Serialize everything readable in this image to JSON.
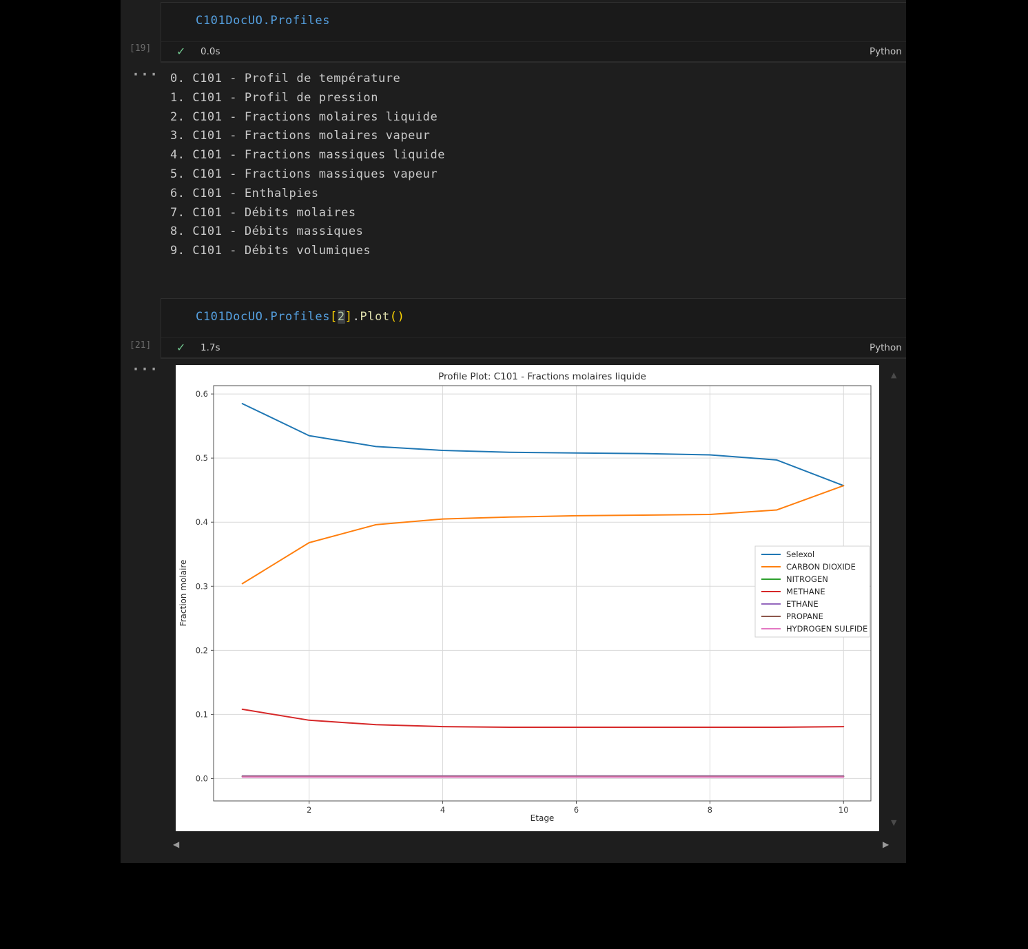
{
  "glyphs": {
    "check": "✓",
    "scroll_up": "▲",
    "scroll_down": "▼",
    "scroll_left": "◀",
    "scroll_right": "▶"
  },
  "cells": [
    {
      "execution_count": "[19]",
      "tokens": [
        {
          "text": "C101DocUO.Profiles",
          "style": "ident"
        }
      ],
      "duration": "0.0s",
      "kernel": "Python",
      "output": {
        "ellipsis": "···",
        "lines": [
          "0. C101 - Profil de température",
          "1. C101 - Profil de pression",
          "2. C101 - Fractions molaires liquide",
          "3. C101 - Fractions molaires vapeur",
          "4. C101 - Fractions massiques liquide",
          "5. C101 - Fractions massiques vapeur",
          "6. C101 - Enthalpies",
          "7. C101 - Débits molaires",
          "8. C101 - Débits massiques",
          "9. C101 - Débits volumiques"
        ]
      }
    },
    {
      "execution_count": "[21]",
      "tokens": [
        {
          "text": "C101DocUO.Profiles",
          "style": "ident"
        },
        {
          "text": "[",
          "style": "bracket"
        },
        {
          "text": "2",
          "style": "number",
          "selected": true
        },
        {
          "text": "]",
          "style": "bracket"
        },
        {
          "text": ".",
          "style": "plain"
        },
        {
          "text": "Plot",
          "style": "function"
        },
        {
          "text": "()",
          "style": "bracket"
        }
      ],
      "duration": "1.7s",
      "kernel": "Python",
      "output": {
        "ellipsis": "···"
      }
    }
  ],
  "chart_data": {
    "type": "line",
    "title": "Profile Plot: C101 - Fractions molaires liquide",
    "xlabel": "Etage",
    "ylabel": "Fraction molaire",
    "x": [
      1,
      2,
      3,
      4,
      5,
      6,
      7,
      8,
      9,
      10
    ],
    "series": [
      {
        "name": "Selexol",
        "color": "#1f77b4",
        "values": [
          0.585,
          0.535,
          0.518,
          0.512,
          0.509,
          0.508,
          0.507,
          0.505,
          0.497,
          0.457
        ]
      },
      {
        "name": "CARBON DIOXIDE",
        "color": "#ff7f0e",
        "values": [
          0.304,
          0.368,
          0.396,
          0.405,
          0.408,
          0.41,
          0.411,
          0.412,
          0.419,
          0.457
        ]
      },
      {
        "name": "NITROGEN",
        "color": "#2ca02c",
        "values": [
          0.0035,
          0.0035,
          0.0035,
          0.0035,
          0.0035,
          0.0035,
          0.0035,
          0.0035,
          0.0035,
          0.0035
        ]
      },
      {
        "name": "METHANE",
        "color": "#d62728",
        "values": [
          0.108,
          0.091,
          0.084,
          0.081,
          0.08,
          0.08,
          0.08,
          0.08,
          0.08,
          0.081
        ]
      },
      {
        "name": "ETHANE",
        "color": "#9467bd",
        "values": [
          0.004,
          0.004,
          0.004,
          0.004,
          0.004,
          0.004,
          0.004,
          0.004,
          0.004,
          0.004
        ]
      },
      {
        "name": "PROPANE",
        "color": "#8c564b",
        "values": [
          0.0032,
          0.0032,
          0.0032,
          0.0032,
          0.0032,
          0.0032,
          0.0032,
          0.0032,
          0.0032,
          0.0032
        ]
      },
      {
        "name": "HYDROGEN SULFIDE",
        "color": "#e377c2",
        "values": [
          0.0022,
          0.0022,
          0.0022,
          0.0022,
          0.0022,
          0.0022,
          0.0022,
          0.0022,
          0.0022,
          0.0022
        ]
      }
    ],
    "xticks": [
      2,
      4,
      6,
      8,
      10
    ],
    "yticks": [
      0.0,
      0.1,
      0.2,
      0.3,
      0.4,
      0.5,
      0.6
    ],
    "xlim": [
      0.57,
      10.41
    ],
    "ylim": [
      -0.035,
      0.613
    ],
    "grid": true,
    "legend_position": "center right"
  }
}
